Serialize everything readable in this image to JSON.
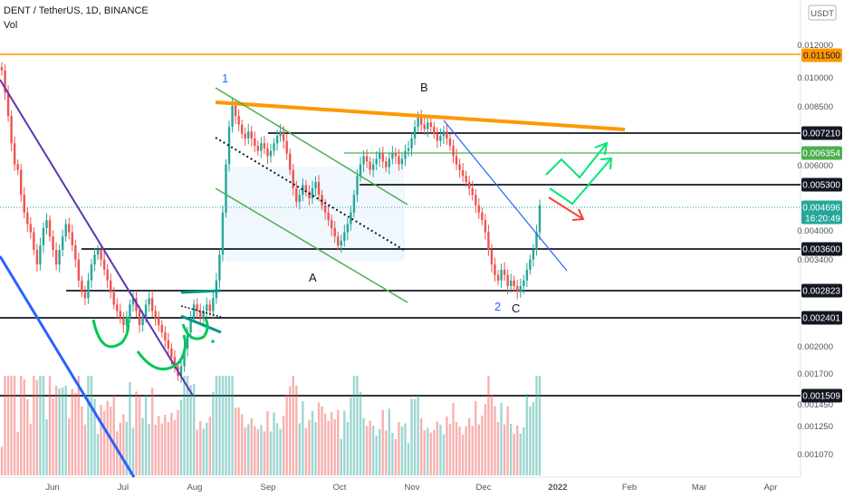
{
  "header": {
    "symbol": "DENT / TetherUS, 1D, BINANCE",
    "indicator": "Vol"
  },
  "currency": "USDT",
  "chart_data": {
    "type": "candlestick",
    "title": "DENT / TetherUS, 1D, BINANCE",
    "x_labels": [
      "Jun",
      "Jul",
      "Aug",
      "Sep",
      "Oct",
      "Nov",
      "Dec",
      "2022",
      "Feb",
      "Mar",
      "Apr"
    ],
    "y_ticks": [
      "0.012000",
      "0.010000",
      "0.008500",
      "0.006000",
      "0.004000",
      "0.003400",
      "0.002000",
      "0.001700",
      "0.001450",
      "0.001250",
      "0.001070"
    ],
    "price_tags": [
      {
        "value": "0.011500",
        "color": "#ff9800",
        "text_color": "#131722"
      },
      {
        "value": "0.007210",
        "color": "#131722",
        "text_color": "#ffffff"
      },
      {
        "value": "0.006354",
        "color": "#4caf50",
        "text_color": "#ffffff"
      },
      {
        "value": "0.005300",
        "color": "#131722",
        "text_color": "#ffffff"
      },
      {
        "value": "0.004696",
        "color": "#26a69a",
        "text_color": "#ffffff",
        "sub": "16:20:49"
      },
      {
        "value": "0.003600",
        "color": "#131722",
        "text_color": "#ffffff"
      },
      {
        "value": "0.002823",
        "color": "#131722",
        "text_color": "#ffffff"
      },
      {
        "value": "0.002401",
        "color": "#131722",
        "text_color": "#ffffff"
      },
      {
        "value": "0.001509",
        "color": "#131722",
        "text_color": "#ffffff"
      }
    ],
    "annotations": [
      "1",
      "B",
      "A",
      "2",
      "C"
    ],
    "close": [
      0.0105,
      0.0092,
      0.008,
      0.0068,
      0.006,
      0.0058,
      0.005,
      0.0045,
      0.0042,
      0.004,
      0.0036,
      0.0033,
      0.0037,
      0.0041,
      0.0043,
      0.0039,
      0.0036,
      0.0033,
      0.0036,
      0.0039,
      0.0042,
      0.004,
      0.0037,
      0.0034,
      0.003,
      0.0028,
      0.0027,
      0.003,
      0.0033,
      0.0035,
      0.0036,
      0.0034,
      0.0032,
      0.003,
      0.0028,
      0.0026,
      0.0025,
      0.0024,
      0.0023,
      0.0024,
      0.0026,
      0.0027,
      0.0025,
      0.0023,
      0.0024,
      0.0026,
      0.0027,
      0.0025,
      0.0024,
      0.0023,
      0.0022,
      0.0021,
      0.002,
      0.0019,
      0.0018,
      0.0017,
      0.0018,
      0.002,
      0.0022,
      0.0024,
      0.0026,
      0.0025,
      0.0024,
      0.0025,
      0.0026,
      0.0025,
      0.0027,
      0.003,
      0.0035,
      0.0045,
      0.006,
      0.0075,
      0.0085,
      0.008,
      0.0076,
      0.0072,
      0.007,
      0.0073,
      0.007,
      0.0067,
      0.0065,
      0.0068,
      0.0066,
      0.0063,
      0.0065,
      0.0068,
      0.0071,
      0.0073,
      0.0069,
      0.0064,
      0.0058,
      0.0052,
      0.0048,
      0.005,
      0.0053,
      0.0051,
      0.0049,
      0.0052,
      0.0054,
      0.005,
      0.0047,
      0.0045,
      0.0043,
      0.0041,
      0.0039,
      0.0037,
      0.0038,
      0.004,
      0.0042,
      0.0045,
      0.005,
      0.0056,
      0.006,
      0.0063,
      0.0061,
      0.0058,
      0.006,
      0.0062,
      0.0064,
      0.0061,
      0.0059,
      0.0062,
      0.0064,
      0.0063,
      0.006,
      0.0062,
      0.0065,
      0.0066,
      0.007,
      0.0075,
      0.008,
      0.0076,
      0.0074,
      0.0077,
      0.0075,
      0.0072,
      0.0069,
      0.0071,
      0.0073,
      0.007,
      0.0067,
      0.0063,
      0.006,
      0.0058,
      0.0056,
      0.0054,
      0.0052,
      0.005,
      0.0047,
      0.0045,
      0.0043,
      0.004,
      0.0036,
      0.0033,
      0.0031,
      0.003,
      0.0032,
      0.0031,
      0.0029,
      0.003,
      0.0029,
      0.0028,
      0.0029,
      0.003,
      0.0032,
      0.0034,
      0.0036,
      0.004,
      0.0047
    ]
  }
}
